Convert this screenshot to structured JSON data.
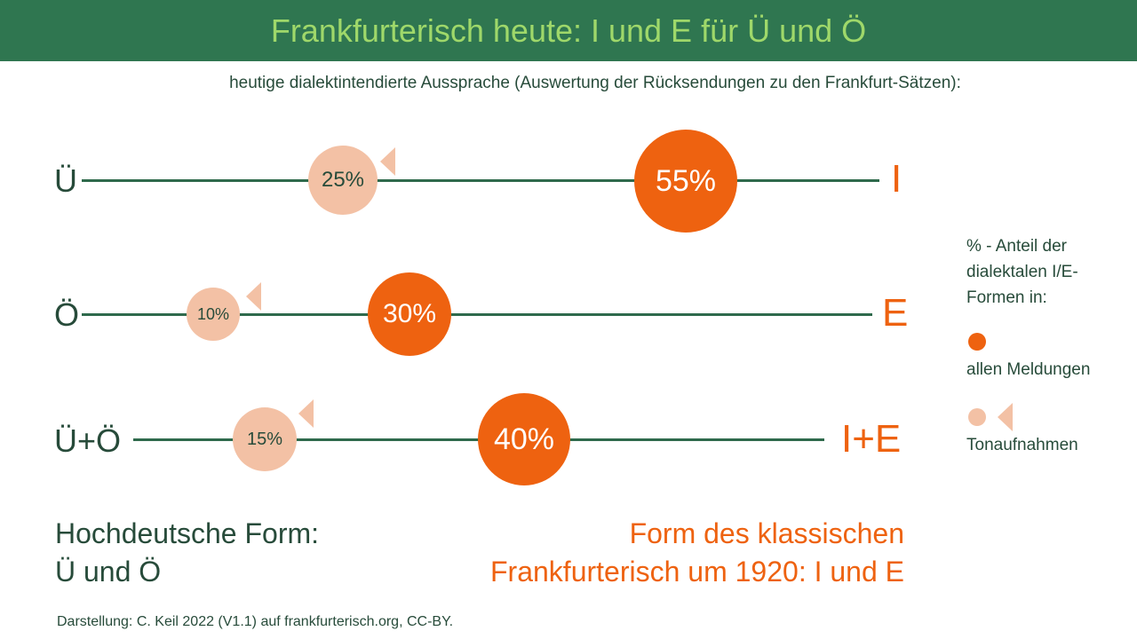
{
  "title": "Frankfurterisch heute: I und E für Ü und Ö",
  "subtitle": "heutige dialektintendierte Aussprache (Auswertung der Rücksendungen zu den Frankfurt-Sätzen):",
  "rows": [
    {
      "from": "Ü",
      "to": "I",
      "audio_percent": "25%",
      "all_percent": "55%"
    },
    {
      "from": "Ö",
      "to": "E",
      "audio_percent": "10%",
      "all_percent": "30%"
    },
    {
      "from": "Ü+Ö",
      "to": "I+E",
      "audio_percent": "15%",
      "all_percent": "40%"
    }
  ],
  "legend": {
    "heading": "% - Anteil der dialektalen I/E-Formen in:",
    "all_label": "allen Meldungen",
    "audio_label": "Tonaufnahmen"
  },
  "bottom_left": [
    "Hochdeutsche Form:",
    "Ü und Ö"
  ],
  "bottom_right": [
    "Form des klassischen",
    "Frankfurterisch um 1920: I und E"
  ],
  "credit": "Darstellung: C. Keil 2022 (V1.1) auf frankfurterisch.org, CC-BY.",
  "colors": {
    "header_bg": "#2f7650",
    "title": "#9fd86a",
    "dialect_orange": "#ee6210",
    "audio_light": "#f3c1a5",
    "text_green": "#274b3a"
  },
  "icons": {
    "audio": "speaker-icon"
  }
}
